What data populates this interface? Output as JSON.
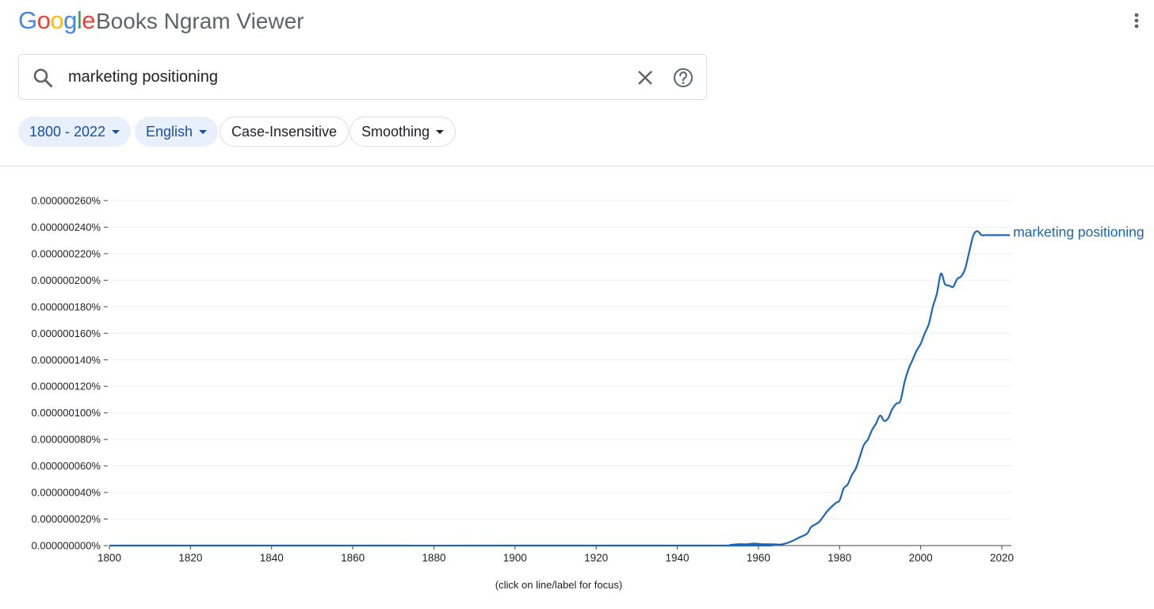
{
  "header": {
    "logo_text": "Google",
    "title": "Books Ngram Viewer",
    "more_icon": "more-vert-icon"
  },
  "search": {
    "value": "marketing positioning",
    "placeholder": "",
    "icons": [
      "search-icon",
      "close-icon",
      "help-icon"
    ]
  },
  "filters": {
    "year_range": "1800 - 2022",
    "corpus": "English",
    "case": "Case-Insensitive",
    "smoothing": "Smoothing"
  },
  "colors": {
    "accent": "#1a66b8",
    "chip_bg": "#e8f0fe",
    "chip_text": "#174ea6"
  },
  "chart_data": {
    "type": "line",
    "xlim": [
      1800,
      2022
    ],
    "ylim": [
      0,
      2.6e-07
    ],
    "x_ticks": [
      1800,
      1820,
      1840,
      1860,
      1880,
      1900,
      1920,
      1940,
      1960,
      1980,
      2000,
      2020
    ],
    "y_ticks": [
      "0.000000000%",
      "0.000000020%",
      "0.000000040%",
      "0.000000060%",
      "0.000000080%",
      "0.000000100%",
      "0.000000120%",
      "0.000000140%",
      "0.000000160%",
      "0.000000180%",
      "0.000000200%",
      "0.000000220%",
      "0.000000240%",
      "0.000000260%"
    ],
    "grid": true,
    "note": "(click on line/label for focus)",
    "series": [
      {
        "name": "marketing positioning",
        "x": [
          1800,
          1952,
          1953,
          1955,
          1957,
          1959,
          1961,
          1963,
          1965,
          1966,
          1968,
          1970,
          1972,
          1973,
          1975,
          1977,
          1979,
          1980,
          1981,
          1982,
          1983,
          1984,
          1985,
          1986,
          1987,
          1988,
          1989,
          1990,
          1991,
          1992,
          1993,
          1994,
          1995,
          1996,
          1997,
          1998,
          1999,
          2000,
          2001,
          2002,
          2003,
          2004,
          2005,
          2006,
          2007,
          2008,
          2009,
          2010,
          2011,
          2012,
          2013,
          2014,
          2015,
          2016,
          2017,
          2018,
          2019,
          2020,
          2021,
          2022
        ],
        "y": [
          0,
          0,
          5e-10,
          1e-09,
          1e-09,
          1.5e-09,
          1e-09,
          1e-09,
          8e-10,
          1e-09,
          3e-09,
          6e-09,
          9e-09,
          1.4e-08,
          1.8e-08,
          2.6e-08,
          3.2e-08,
          3.4e-08,
          4.3e-08,
          4.6e-08,
          5.3e-08,
          5.8e-08,
          6.7e-08,
          7.6e-08,
          8e-08,
          8.7e-08,
          9.2e-08,
          9.8e-08,
          9.4e-08,
          9.6e-08,
          1.03e-07,
          1.07e-07,
          1.09e-07,
          1.23e-07,
          1.33e-07,
          1.4e-07,
          1.47e-07,
          1.52e-07,
          1.6e-07,
          1.67e-07,
          1.8e-07,
          1.9e-07,
          2.05e-07,
          1.97e-07,
          1.96e-07,
          1.95e-07,
          2.01e-07,
          2.03e-07,
          2.09e-07,
          2.22e-07,
          2.34e-07,
          2.37e-07,
          2.34e-07,
          2.34e-07,
          2.34e-07,
          2.34e-07,
          2.34e-07,
          2.34e-07,
          2.34e-07,
          2.34e-07
        ]
      }
    ]
  }
}
